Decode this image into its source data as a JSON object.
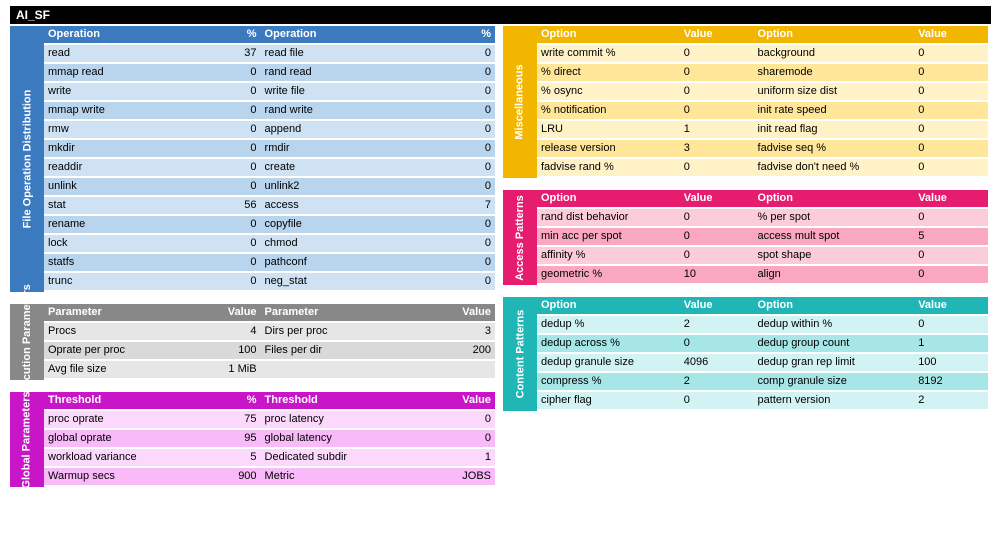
{
  "title": "AI_SF",
  "file_op": {
    "label": "File Operation Distribution",
    "headers": [
      "Operation",
      "%",
      "Operation",
      "%"
    ],
    "rows": [
      [
        "read",
        "37",
        "read file",
        "0"
      ],
      [
        "mmap read",
        "0",
        "rand read",
        "0"
      ],
      [
        "write",
        "0",
        "write file",
        "0"
      ],
      [
        "mmap write",
        "0",
        "rand write",
        "0"
      ],
      [
        "rmw",
        "0",
        "append",
        "0"
      ],
      [
        "mkdir",
        "0",
        "rmdir",
        "0"
      ],
      [
        "readdir",
        "0",
        "create",
        "0"
      ],
      [
        "unlink",
        "0",
        "unlink2",
        "0"
      ],
      [
        "stat",
        "56",
        "access",
        "7"
      ],
      [
        "rename",
        "0",
        "copyfile",
        "0"
      ],
      [
        "lock",
        "0",
        "chmod",
        "0"
      ],
      [
        "statfs",
        "0",
        "pathconf",
        "0"
      ],
      [
        "trunc",
        "0",
        "neg_stat",
        "0"
      ]
    ]
  },
  "exec": {
    "label": "Execution Parameters",
    "headers": [
      "Parameter",
      "Value",
      "Parameter",
      "Value"
    ],
    "rows": [
      [
        "Procs",
        "4",
        "Dirs per proc",
        "3"
      ],
      [
        "Oprate per proc",
        "100",
        "Files per dir",
        "200"
      ],
      [
        "Avg file size",
        "1 MiB",
        "",
        ""
      ]
    ]
  },
  "glob": {
    "label": "Global Parameters",
    "headers": [
      "Threshold",
      "%",
      "Threshold",
      "Value"
    ],
    "rows": [
      [
        "proc oprate",
        "75",
        "proc latency",
        "0"
      ],
      [
        "global oprate",
        "95",
        "global latency",
        "0"
      ],
      [
        "workload variance",
        "5",
        "Dedicated subdir",
        "1"
      ],
      [
        "Warmup secs",
        "900",
        "Metric",
        "JOBS"
      ]
    ]
  },
  "misc": {
    "label": "Miscellaneous",
    "headers": [
      "Option",
      "Value",
      "Option",
      "Value"
    ],
    "rows": [
      [
        "write commit %",
        "0",
        "background",
        "0"
      ],
      [
        "% direct",
        "0",
        "sharemode",
        "0"
      ],
      [
        "% osync",
        "0",
        "uniform size dist",
        "0"
      ],
      [
        "% notification",
        "0",
        "init rate speed",
        "0"
      ],
      [
        "LRU",
        "1",
        "init read flag",
        "0"
      ],
      [
        "release version",
        "3",
        "fadvise seq %",
        "0"
      ],
      [
        "fadvise rand %",
        "0",
        "fadvise don't need %",
        "0"
      ]
    ]
  },
  "acc": {
    "label": "Access Patterns",
    "headers": [
      "Option",
      "Value",
      "Option",
      "Value"
    ],
    "rows": [
      [
        "rand dist behavior",
        "0",
        "% per spot",
        "0"
      ],
      [
        "min acc per spot",
        "0",
        "access mult spot",
        "5"
      ],
      [
        "affinity %",
        "0",
        "spot shape",
        "0"
      ],
      [
        "geometric %",
        "10",
        "align",
        "0"
      ]
    ]
  },
  "cont": {
    "label": "Content Patterns",
    "headers": [
      "Option",
      "Value",
      "Option",
      "Value"
    ],
    "rows": [
      [
        "dedup %",
        "2",
        "dedup within %",
        "0"
      ],
      [
        "dedup across %",
        "0",
        "dedup group count",
        "1"
      ],
      [
        "dedup granule size",
        "4096",
        "dedup gran rep limit",
        "100"
      ],
      [
        "compress %",
        "2",
        "comp granule size",
        "8192"
      ],
      [
        "cipher flag",
        "0",
        "pattern version",
        "2"
      ]
    ]
  }
}
